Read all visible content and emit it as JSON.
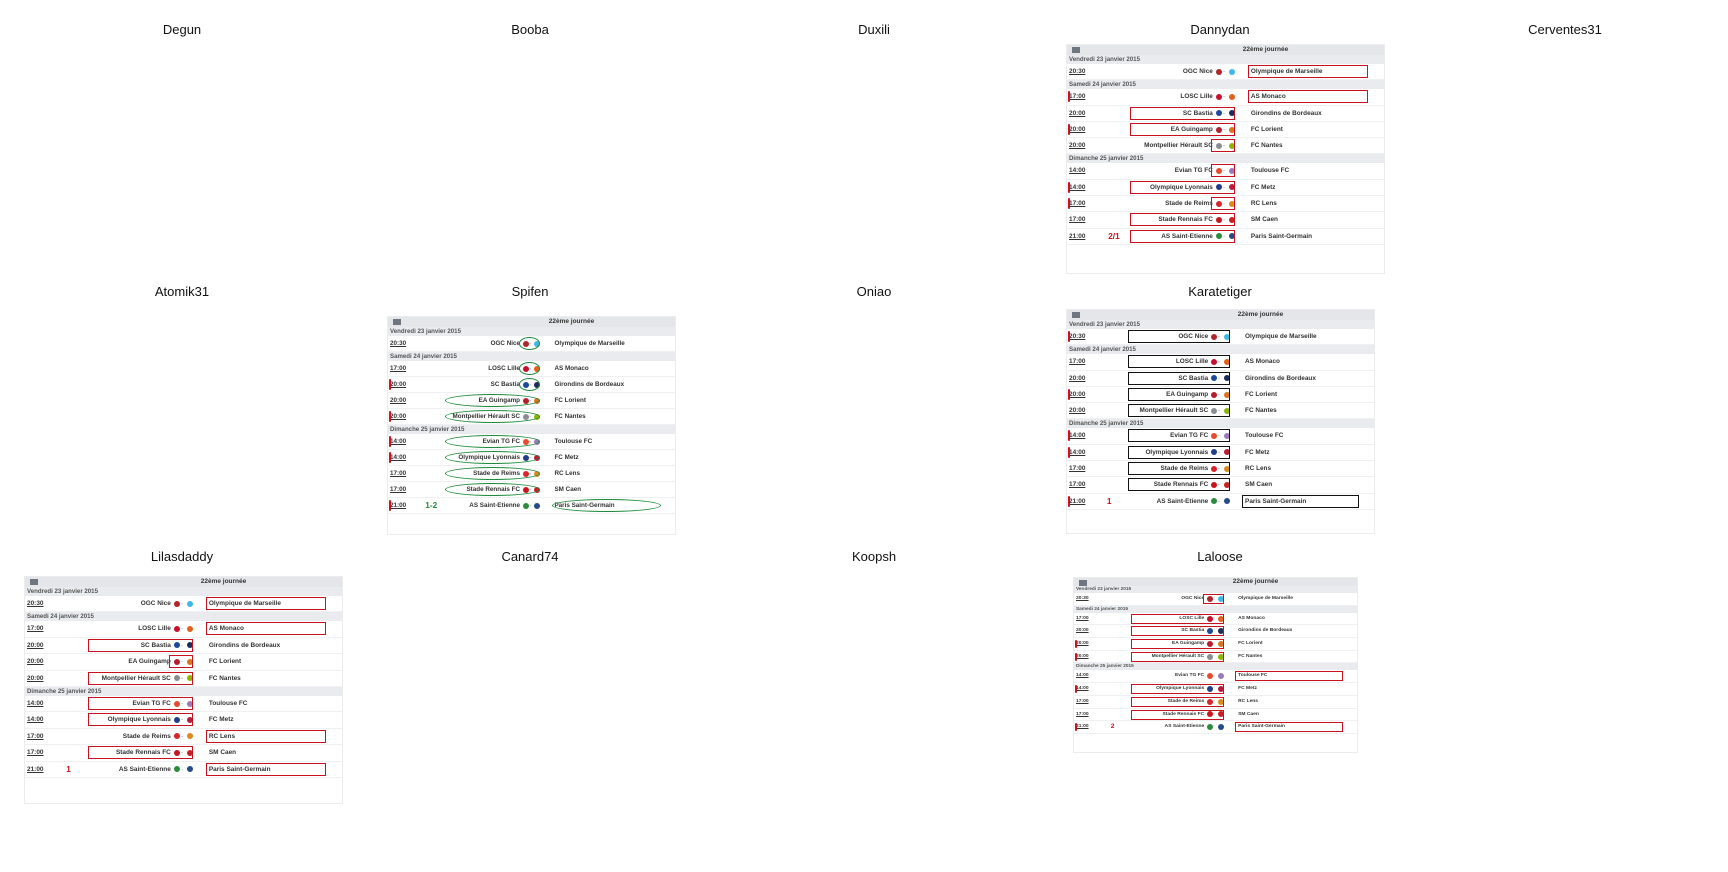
{
  "players": [
    "Degun",
    "Booba",
    "Duxili",
    "Dannydan",
    "Cerventes31",
    "Atomik31",
    "Spifen",
    "Oniao",
    "Karatetiger",
    "Lilasdaddy",
    "Canard74",
    "Koopsh",
    "Laloose"
  ],
  "round_title": "22ème journée",
  "days": [
    "Vendredi 23 janvier 2015",
    "Samedi 24 janvier 2015",
    "Dimanche 25 janvier 2015"
  ],
  "matches": [
    {
      "time": "20:30",
      "home": "OGC Nice",
      "away": "Olympique de Marseille",
      "day": 0,
      "hc": "#b0262d",
      "ac": "#3fb8e6"
    },
    {
      "time": "17:00",
      "home": "LOSC Lille",
      "away": "AS Monaco",
      "day": 1,
      "hc": "#c8102e",
      "ac": "#e2611b"
    },
    {
      "time": "20:00",
      "home": "SC Bastia",
      "away": "Girondins de Bordeaux",
      "day": 1,
      "hc": "#1b4a9c",
      "ac": "#1c2c5b"
    },
    {
      "time": "20:00",
      "home": "EA Guingamp",
      "away": "FC Lorient",
      "day": 1,
      "hc": "#b61e2e",
      "ac": "#d8741e"
    },
    {
      "time": "20:00",
      "home": "Montpellier Hérault SC",
      "away": "FC Nantes",
      "day": 1,
      "hc": "#8a8d93",
      "ac": "#8db500"
    },
    {
      "time": "14:00",
      "home": "Evian TG FC",
      "away": "Toulouse FC",
      "day": 2,
      "hc": "#e64b2d",
      "ac": "#9c7ab8"
    },
    {
      "time": "14:00",
      "home": "Olympique Lyonnais",
      "away": "FC Metz",
      "day": 2,
      "hc": "#223d8c",
      "ac": "#b71d3a"
    },
    {
      "time": "17:00",
      "home": "Stade de Reims",
      "away": "RC Lens",
      "day": 2,
      "hc": "#d7242d",
      "ac": "#d98b1f"
    },
    {
      "time": "17:00",
      "home": "Stade Rennais FC",
      "away": "SM Caen",
      "day": 2,
      "hc": "#c8161e",
      "ac": "#c62127"
    },
    {
      "time": "21:00",
      "home": "AS Saint-Etienne",
      "away": "Paris Saint-Germain",
      "day": 2,
      "hc": "#2c8c3e",
      "ac": "#264a8a"
    }
  ],
  "annotations": {
    "dannydan_score": "2/1",
    "spifen_score": "1-2",
    "karatetiger_score": "1",
    "lilasdaddy_score": "1",
    "laloose_score": "2"
  },
  "colors": {
    "red_mark": "#c8101e",
    "green_mark": "#1e8a3c",
    "black_mark": "#111111"
  }
}
